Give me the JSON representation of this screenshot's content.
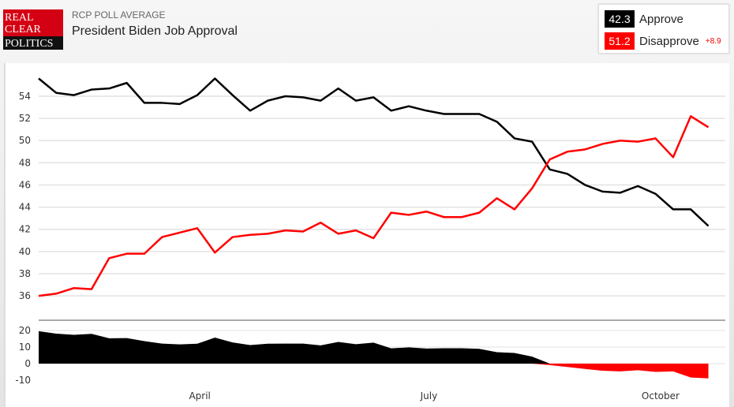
{
  "header": {
    "kicker": "RCP POLL AVERAGE",
    "title": "President Biden Job Approval",
    "logo_text": [
      "REAL",
      "CLEAR",
      "POLITICS"
    ]
  },
  "legend": {
    "approve": {
      "value": "42.3",
      "label": "Approve",
      "color": "#000000"
    },
    "disapprove": {
      "value": "51.2",
      "label": "Disapprove",
      "color": "#ff0000"
    },
    "spread": "+8.9"
  },
  "chart_data": {
    "type": "line",
    "title": "President Biden Job Approval",
    "x": [
      "2021-01-27",
      "2021-02-03",
      "2021-02-10",
      "2021-02-17",
      "2021-02-24",
      "2021-03-03",
      "2021-03-10",
      "2021-03-17",
      "2021-03-24",
      "2021-03-31",
      "2021-04-07",
      "2021-04-14",
      "2021-04-21",
      "2021-04-28",
      "2021-05-05",
      "2021-05-12",
      "2021-05-19",
      "2021-05-26",
      "2021-06-02",
      "2021-06-09",
      "2021-06-16",
      "2021-06-23",
      "2021-06-30",
      "2021-07-07",
      "2021-07-14",
      "2021-07-21",
      "2021-07-28",
      "2021-08-04",
      "2021-08-11",
      "2021-08-18",
      "2021-08-25",
      "2021-09-01",
      "2021-09-08",
      "2021-09-15",
      "2021-09-22",
      "2021-09-29",
      "2021-10-06",
      "2021-10-13",
      "2021-10-20"
    ],
    "series": [
      {
        "name": "Approve",
        "color": "#000000",
        "values": [
          55.6,
          54.3,
          54.1,
          54.6,
          54.7,
          55.2,
          53.4,
          53.4,
          53.3,
          54.1,
          55.6,
          54.1,
          52.7,
          53.6,
          54.0,
          53.9,
          53.6,
          54.7,
          53.6,
          53.9,
          52.7,
          53.1,
          52.7,
          52.4,
          52.4,
          52.4,
          51.7,
          50.2,
          49.9,
          47.4,
          47.0,
          46.0,
          45.4,
          45.3,
          45.9,
          45.2,
          43.8,
          43.8,
          42.3
        ]
      },
      {
        "name": "Disapprove",
        "color": "#ff0000",
        "values": [
          36.0,
          36.2,
          36.7,
          36.6,
          39.4,
          39.8,
          39.8,
          41.3,
          41.7,
          42.1,
          39.9,
          41.3,
          41.5,
          41.6,
          41.9,
          41.8,
          42.6,
          41.6,
          41.9,
          41.2,
          43.5,
          43.3,
          43.6,
          43.1,
          43.1,
          43.5,
          44.8,
          43.8,
          45.7,
          48.3,
          49.0,
          49.2,
          49.7,
          50.0,
          49.9,
          50.2,
          48.5,
          52.2,
          51.2
        ]
      }
    ],
    "spread_panel": {
      "positive_color": "#000000",
      "negative_color": "#ff0000",
      "ylim": [
        -10,
        20
      ],
      "yticks": [
        "20",
        "10",
        "0",
        "-10"
      ]
    },
    "ylim": [
      34.5,
      55.8
    ],
    "yticks": [
      "54",
      "52",
      "50",
      "48",
      "46",
      "44",
      "42",
      "40",
      "38",
      "36"
    ],
    "xticks": [
      {
        "label": "April",
        "date": "2021-04-01"
      },
      {
        "label": "July",
        "date": "2021-07-01"
      },
      {
        "label": "October",
        "date": "2021-10-01"
      }
    ],
    "grid": true
  }
}
